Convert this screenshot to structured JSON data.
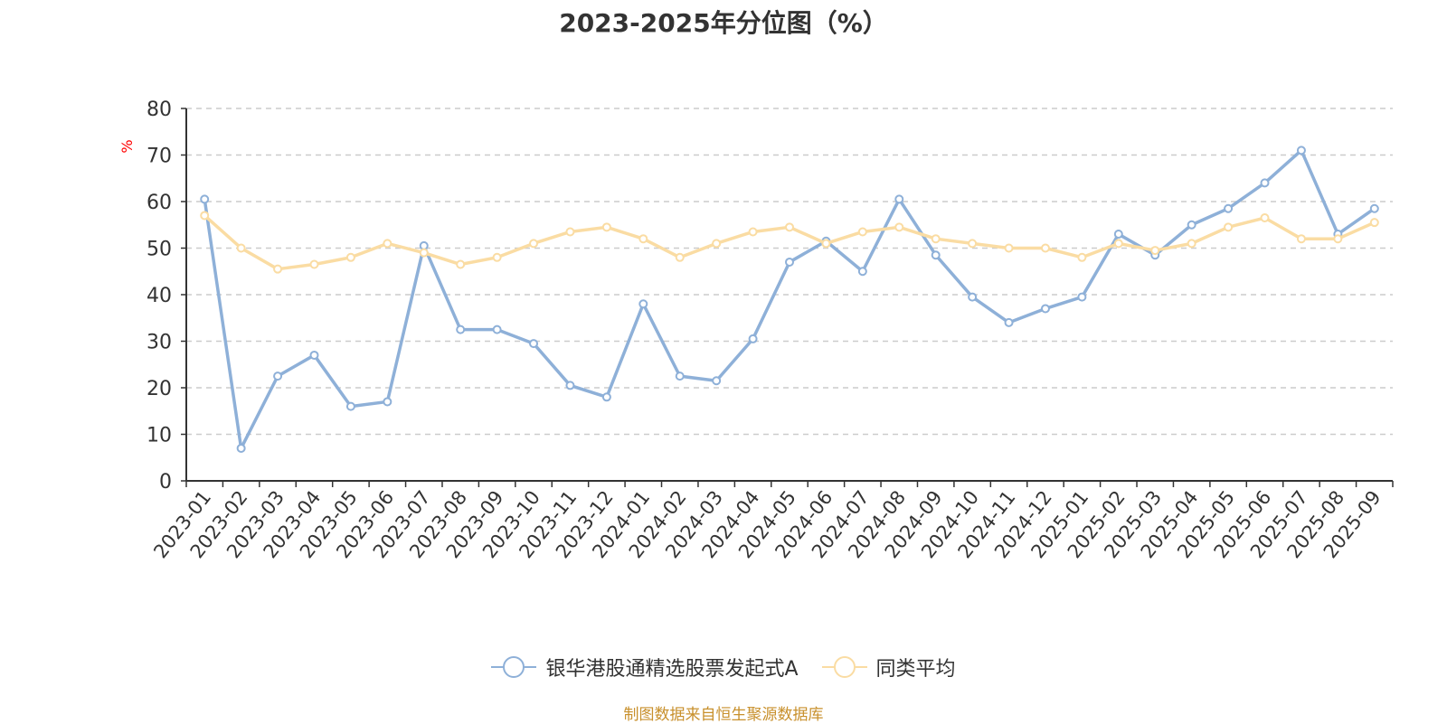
{
  "chart_data": {
    "type": "line",
    "title": "2023-2025年分位图（%）",
    "ylabel": "%",
    "ylim": [
      0,
      80
    ],
    "yticks": [
      0,
      10,
      20,
      30,
      40,
      50,
      60,
      70,
      80
    ],
    "grid": true,
    "legend_position": "bottom",
    "categories": [
      "2023-01",
      "2023-02",
      "2023-03",
      "2023-04",
      "2023-05",
      "2023-06",
      "2023-07",
      "2023-08",
      "2023-09",
      "2023-10",
      "2023-11",
      "2023-12",
      "2024-01",
      "2024-02",
      "2024-03",
      "2024-04",
      "2024-05",
      "2024-06",
      "2024-07",
      "2024-08",
      "2024-09",
      "2024-10",
      "2024-11",
      "2024-12",
      "2025-01",
      "2025-02",
      "2025-03",
      "2025-04",
      "2025-05",
      "2025-06",
      "2025-07",
      "2025-08",
      "2025-09"
    ],
    "series": [
      {
        "name": "银华港股通精选股票发起式A",
        "color": "#8eb0d8",
        "values": [
          60.5,
          7,
          22.5,
          27,
          16,
          17,
          50.5,
          32.5,
          32.5,
          29.5,
          20.5,
          18,
          38,
          22.5,
          21.5,
          30.5,
          47,
          51.5,
          45,
          60.5,
          48.5,
          39.5,
          34,
          37,
          39.5,
          53,
          48.5,
          55,
          58.5,
          64,
          71,
          53,
          58.5
        ]
      },
      {
        "name": "同类平均",
        "color": "#fadca3",
        "values": [
          57,
          50,
          45.5,
          46.5,
          48,
          51,
          49,
          46.5,
          48,
          51,
          53.5,
          54.5,
          52,
          48,
          51,
          53.5,
          54.5,
          51,
          53.5,
          54.5,
          52,
          51,
          50,
          50,
          48,
          51,
          49.5,
          51,
          54.5,
          56.5,
          52,
          52,
          55.5
        ]
      }
    ]
  },
  "source_note": "制图数据来自恒生聚源数据库"
}
